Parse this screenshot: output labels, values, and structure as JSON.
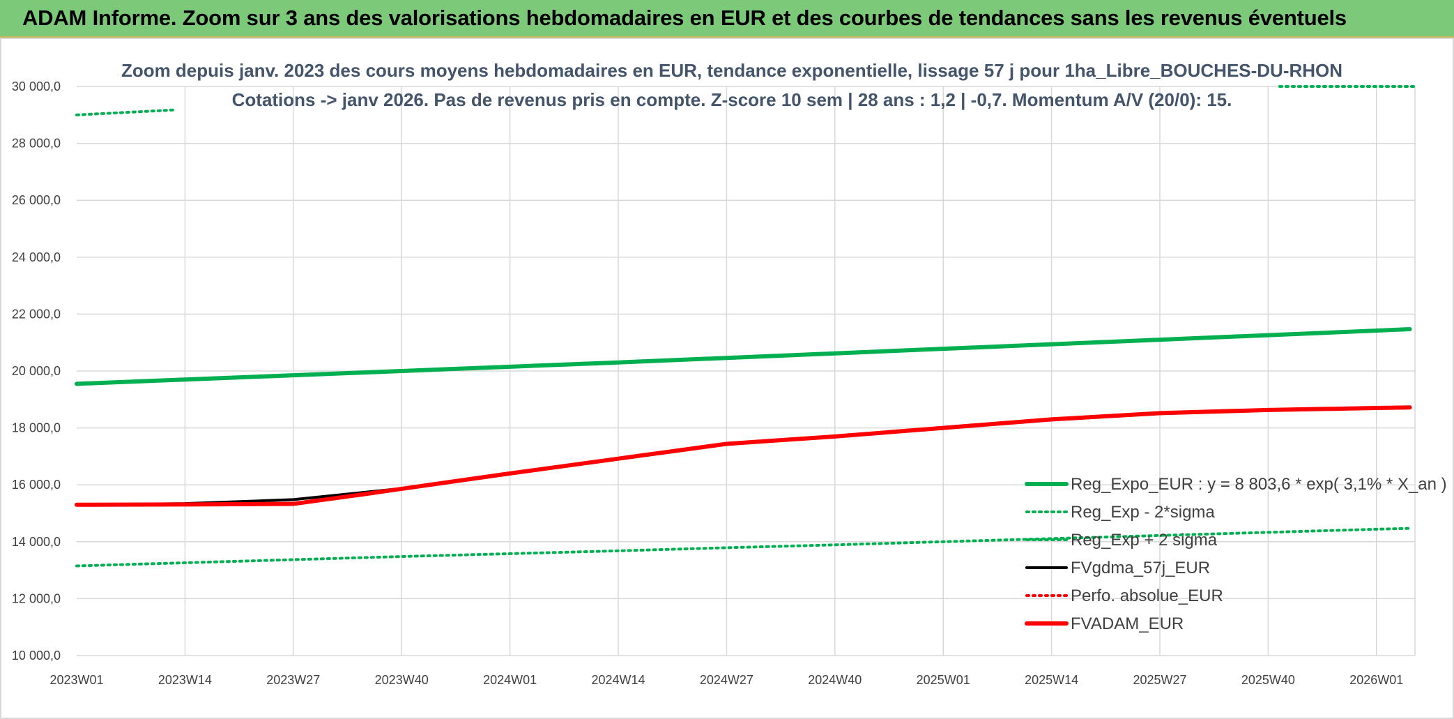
{
  "banner": {
    "title": "ADAM Informe. Zoom sur 3 ans des valorisations hebdomadaires en EUR et des courbes de tendances sans les revenus éventuels"
  },
  "chart_data": {
    "type": "line",
    "subtitle_line1": "Zoom depuis janv. 2023 des cours moyens hebdomadaires en EUR, tendance exponentielle, lissage 57 j pour 1ha_Libre_BOUCHES-DU-RHON",
    "subtitle_line2": "Cotations -> janv 2026. Pas de revenus pris en compte. Z-score 10 sem | 28 ans : 1,2 | -0,7. Momentum A/V (20/0): 15.",
    "ylim": [
      10000,
      30000
    ],
    "yticks": [
      "10 000,0",
      "12 000,0",
      "14 000,0",
      "16 000,0",
      "18 000,0",
      "20 000,0",
      "22 000,0",
      "24 000,0",
      "26 000,0",
      "28 000,0",
      "30 000,0"
    ],
    "xticks": [
      "2023W01",
      "2023W14",
      "2023W27",
      "2023W40",
      "2024W01",
      "2024W14",
      "2024W27",
      "2024W40",
      "2025W01",
      "2025W14",
      "2025W27",
      "2025W40",
      "2026W01"
    ],
    "grid": true,
    "legend_position": "bottom-right",
    "series": [
      {
        "name": "Reg_Expo_EUR : y = 8 803,6 * exp( 3,1% *  X_an )",
        "color": "#00b050",
        "style": "solid-thick",
        "x": [
          "2023W01",
          "2023W14",
          "2023W27",
          "2023W40",
          "2024W01",
          "2024W14",
          "2024W27",
          "2024W40",
          "2025W01",
          "2025W14",
          "2025W27",
          "2025W40",
          "2026W01",
          "2026W05"
        ],
        "y": [
          19550,
          19700,
          19850,
          20000,
          20150,
          20300,
          20460,
          20620,
          20780,
          20940,
          21100,
          21260,
          21420,
          21470
        ]
      },
      {
        "name": "Reg_Exp - 2*sigma",
        "color": "#00b050",
        "style": "dotted",
        "x": [
          "2023W01",
          "2023W14",
          "2023W27",
          "2023W40",
          "2024W01",
          "2024W14",
          "2024W27",
          "2024W40",
          "2025W01",
          "2025W14",
          "2025W27",
          "2025W40",
          "2026W01",
          "2026W05"
        ],
        "y": [
          13150,
          13260,
          13370,
          13480,
          13580,
          13680,
          13790,
          13890,
          14000,
          14110,
          14220,
          14330,
          14440,
          14470
        ]
      },
      {
        "name": "Reg_Exp + 2 sigma",
        "color": "#00b050",
        "style": "dotted",
        "x": [
          "2023W01",
          "2023W05",
          "2023W09",
          "2023W13",
          "2026W01",
          "2026W05"
        ],
        "y": [
          29000,
          29060,
          29120,
          29180,
          30000,
          30000
        ]
      },
      {
        "name": "FVgdma_57j_EUR",
        "color": "#000000",
        "style": "solid",
        "x": [
          "2023W01",
          "2023W14",
          "2023W27",
          "2023W35",
          "2023W40",
          "2024W01",
          "2024W14",
          "2024W27",
          "2024W40",
          "2025W01",
          "2025W14",
          "2025W27",
          "2025W40",
          "2026W01",
          "2026W05"
        ],
        "y": [
          15300,
          15340,
          15480,
          15720,
          15870,
          16400,
          16900,
          17420,
          17700,
          18000,
          18280,
          18500,
          18620,
          18700,
          18720
        ]
      },
      {
        "name": "Perfo. absolue_EUR",
        "color": "#ff0000",
        "style": "dotted",
        "x": [],
        "y": []
      },
      {
        "name": "FVADAM_EUR",
        "color": "#ff0000",
        "style": "solid-thick",
        "x": [
          "2023W01",
          "2023W14",
          "2023W27",
          "2023W35",
          "2023W40",
          "2024W01",
          "2024W14",
          "2024W27",
          "2024W40",
          "2025W01",
          "2025W14",
          "2025W27",
          "2025W40",
          "2026W01",
          "2026W05"
        ],
        "y": [
          15300,
          15310,
          15330,
          15650,
          15860,
          16400,
          16920,
          17440,
          17700,
          18000,
          18300,
          18520,
          18630,
          18700,
          18720
        ]
      }
    ]
  }
}
